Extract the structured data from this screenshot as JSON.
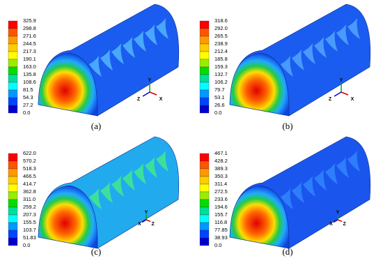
{
  "panels": [
    {
      "caption": "(a)",
      "legend": [
        "325.9",
        "298.8",
        "271.6",
        "244.5",
        "217.3",
        "190.1",
        "163.0",
        "135.8",
        "108.6",
        "81.5",
        "54.3",
        "27.2",
        "0.0"
      ],
      "triad": [
        "Y",
        "Z",
        "X"
      ]
    },
    {
      "caption": "(b)",
      "legend": [
        "318.6",
        "292.0",
        "265.5",
        "238.9",
        "212.4",
        "185.8",
        "159.3",
        "132.7",
        "106.2",
        "79.7",
        "53.1",
        "26.6",
        "0.0"
      ],
      "triad": [
        "Y",
        "Z",
        "X"
      ]
    },
    {
      "caption": "(c)",
      "legend": [
        "622.0",
        "570.2",
        "518.3",
        "466.5",
        "414.7",
        "362.8",
        "311.0",
        "259.2",
        "207.3",
        "155.5",
        "103.7",
        "51.83",
        "0.0"
      ],
      "triad": [
        "Y",
        "X",
        "Z"
      ]
    },
    {
      "caption": "(d)",
      "legend": [
        "467.1",
        "428.2",
        "389.3",
        "350.3",
        "311.4",
        "272.5",
        "233.6",
        "194.6",
        "155.7",
        "116.8",
        "77.85",
        "38.93",
        "0.0"
      ],
      "triad": [
        "Y",
        "X",
        "Z"
      ]
    }
  ]
}
